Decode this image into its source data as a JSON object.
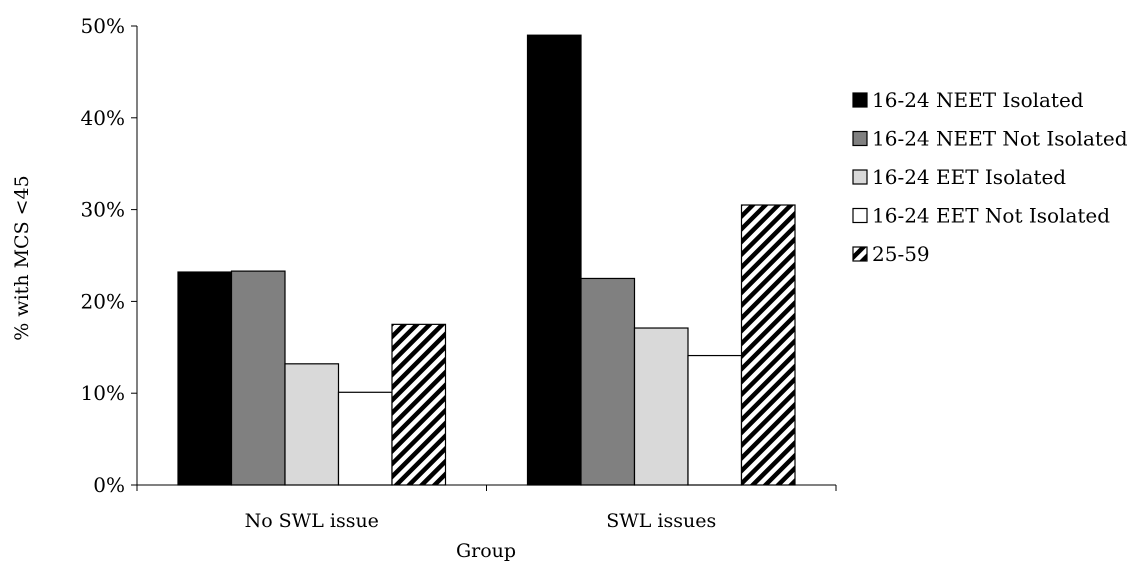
{
  "chart_data": {
    "type": "bar",
    "xlabel": "Group",
    "ylabel": "% with MCS <45",
    "ylim": [
      0,
      50
    ],
    "yticks": [
      "0%",
      "10%",
      "20%",
      "30%",
      "40%",
      "50%"
    ],
    "categories": [
      "No SWL issue",
      "SWL issues"
    ],
    "grid": false,
    "legend_position": "right",
    "series": [
      {
        "name": "16-24 NEET Isolated",
        "values": [
          23.2,
          49.0
        ],
        "fill": "#000000",
        "pattern": "solid"
      },
      {
        "name": "16-24 NEET Not Isolated",
        "values": [
          23.3,
          22.5
        ],
        "fill": "#808080",
        "pattern": "solid"
      },
      {
        "name": "16-24 EET Isolated",
        "values": [
          13.2,
          17.1
        ],
        "fill": "#d9d9d9",
        "pattern": "solid"
      },
      {
        "name": "16-24 EET Not Isolated",
        "values": [
          10.1,
          14.1
        ],
        "fill": "#ffffff",
        "pattern": "solid"
      },
      {
        "name": "25-59",
        "values": [
          17.5,
          30.5
        ],
        "fill": "#ffffff",
        "pattern": "diagonal-stripes"
      }
    ]
  }
}
